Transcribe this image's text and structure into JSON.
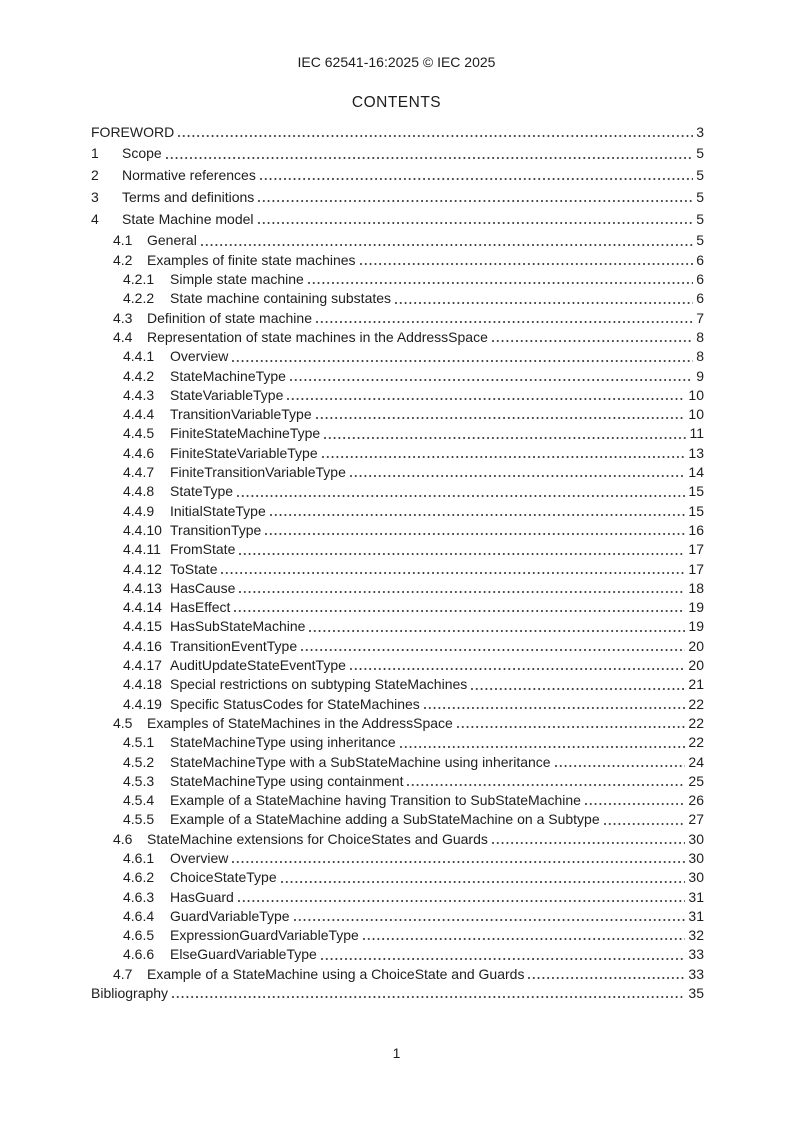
{
  "page": {
    "background_color": "#ffffff",
    "text_color": "#1d1d1d",
    "leader_dot_color": "#3a3a3a"
  },
  "header": {
    "title": "IEC 62541-16:2025 © IEC 2025"
  },
  "contents": {
    "title": "CONTENTS"
  },
  "toc": {
    "entries": [
      {
        "num": "",
        "title": "FOREWORD",
        "page": "3",
        "level": 0,
        "major": true
      },
      {
        "num": "1",
        "title": "Scope",
        "page": "5",
        "level": 1,
        "major": true
      },
      {
        "num": "2",
        "title": "Normative references",
        "page": "5",
        "level": 1,
        "major": true
      },
      {
        "num": "3",
        "title": "Terms and definitions",
        "page": "5",
        "level": 1,
        "major": true
      },
      {
        "num": "4",
        "title": "State Machine model",
        "page": "5",
        "level": 1,
        "major": true
      },
      {
        "num": "4.1",
        "title": "General",
        "page": "5",
        "level": 2,
        "major": false
      },
      {
        "num": "4.2",
        "title": "Examples of finite state machines",
        "page": "6",
        "level": 2,
        "major": false
      },
      {
        "num": "4.2.1",
        "title": "Simple state machine",
        "page": "6",
        "level": 3,
        "major": false
      },
      {
        "num": "4.2.2",
        "title": "State machine containing substates",
        "page": "6",
        "level": 3,
        "major": false
      },
      {
        "num": "4.3",
        "title": "Definition of state machine",
        "page": "7",
        "level": 2,
        "major": false
      },
      {
        "num": "4.4",
        "title": "Representation of state machines in the AddressSpace",
        "page": "8",
        "level": 2,
        "major": false
      },
      {
        "num": "4.4.1",
        "title": "Overview",
        "page": "8",
        "level": 3,
        "major": false
      },
      {
        "num": "4.4.2",
        "title": "StateMachineType",
        "page": "9",
        "level": 3,
        "major": false
      },
      {
        "num": "4.4.3",
        "title": "StateVariableType",
        "page": "10",
        "level": 3,
        "major": false
      },
      {
        "num": "4.4.4",
        "title": "TransitionVariableType",
        "page": "10",
        "level": 3,
        "major": false
      },
      {
        "num": "4.4.5",
        "title": "FiniteStateMachineType",
        "page": "11",
        "level": 3,
        "major": false
      },
      {
        "num": "4.4.6",
        "title": "FiniteStateVariableType",
        "page": "13",
        "level": 3,
        "major": false
      },
      {
        "num": "4.4.7",
        "title": "FiniteTransitionVariableType",
        "page": "14",
        "level": 3,
        "major": false
      },
      {
        "num": "4.4.8",
        "title": "StateType",
        "page": "15",
        "level": 3,
        "major": false
      },
      {
        "num": "4.4.9",
        "title": "InitialStateType",
        "page": "15",
        "level": 3,
        "major": false
      },
      {
        "num": "4.4.10",
        "title": "TransitionType",
        "page": "16",
        "level": 3,
        "major": false
      },
      {
        "num": "4.4.11",
        "title": "FromState",
        "page": "17",
        "level": 3,
        "major": false
      },
      {
        "num": "4.4.12",
        "title": "ToState",
        "page": "17",
        "level": 3,
        "major": false
      },
      {
        "num": "4.4.13",
        "title": "HasCause",
        "page": "18",
        "level": 3,
        "major": false
      },
      {
        "num": "4.4.14",
        "title": "HasEffect",
        "page": "19",
        "level": 3,
        "major": false
      },
      {
        "num": "4.4.15",
        "title": "HasSubStateMachine",
        "page": "19",
        "level": 3,
        "major": false
      },
      {
        "num": "4.4.16",
        "title": "TransitionEventType",
        "page": "20",
        "level": 3,
        "major": false
      },
      {
        "num": "4.4.17",
        "title": "AuditUpdateStateEventType",
        "page": "20",
        "level": 3,
        "major": false
      },
      {
        "num": "4.4.18",
        "title": "Special restrictions on subtyping StateMachines",
        "page": "21",
        "level": 3,
        "major": false
      },
      {
        "num": "4.4.19",
        "title": "Specific StatusCodes for StateMachines",
        "page": "22",
        "level": 3,
        "major": false
      },
      {
        "num": "4.5",
        "title": "Examples of StateMachines in the AddressSpace",
        "page": "22",
        "level": 2,
        "major": false
      },
      {
        "num": "4.5.1",
        "title": "StateMachineType using inheritance",
        "page": "22",
        "level": 3,
        "major": false
      },
      {
        "num": "4.5.2",
        "title": "StateMachineType with a SubStateMachine using inheritance",
        "page": "24",
        "level": 3,
        "major": false
      },
      {
        "num": "4.5.3",
        "title": "StateMachineType using containment",
        "page": "25",
        "level": 3,
        "major": false
      },
      {
        "num": "4.5.4",
        "title": "Example of a StateMachine having Transition to SubStateMachine",
        "page": "26",
        "level": 3,
        "major": false
      },
      {
        "num": "4.5.5",
        "title": "Example of a StateMachine adding a SubStateMachine on a Subtype",
        "page": "27",
        "level": 3,
        "major": false
      },
      {
        "num": "4.6",
        "title": "StateMachine extensions for ChoiceStates and Guards",
        "page": "30",
        "level": 2,
        "major": false
      },
      {
        "num": "4.6.1",
        "title": "Overview",
        "page": "30",
        "level": 3,
        "major": false
      },
      {
        "num": "4.6.2",
        "title": "ChoiceStateType",
        "page": "30",
        "level": 3,
        "major": false
      },
      {
        "num": "4.6.3",
        "title": "HasGuard",
        "page": "31",
        "level": 3,
        "major": false
      },
      {
        "num": "4.6.4",
        "title": "GuardVariableType",
        "page": "31",
        "level": 3,
        "major": false
      },
      {
        "num": "4.6.5",
        "title": "ExpressionGuardVariableType",
        "page": "32",
        "level": 3,
        "major": false
      },
      {
        "num": "4.6.6",
        "title": "ElseGuardVariableType",
        "page": "33",
        "level": 3,
        "major": false
      },
      {
        "num": "4.7",
        "title": "Example of a StateMachine using a ChoiceState and Guards",
        "page": "33",
        "level": 2,
        "major": false
      },
      {
        "num": "",
        "title": "Bibliography",
        "page": "35",
        "level": 0,
        "major": false
      }
    ]
  },
  "footer": {
    "page_number": "1"
  }
}
